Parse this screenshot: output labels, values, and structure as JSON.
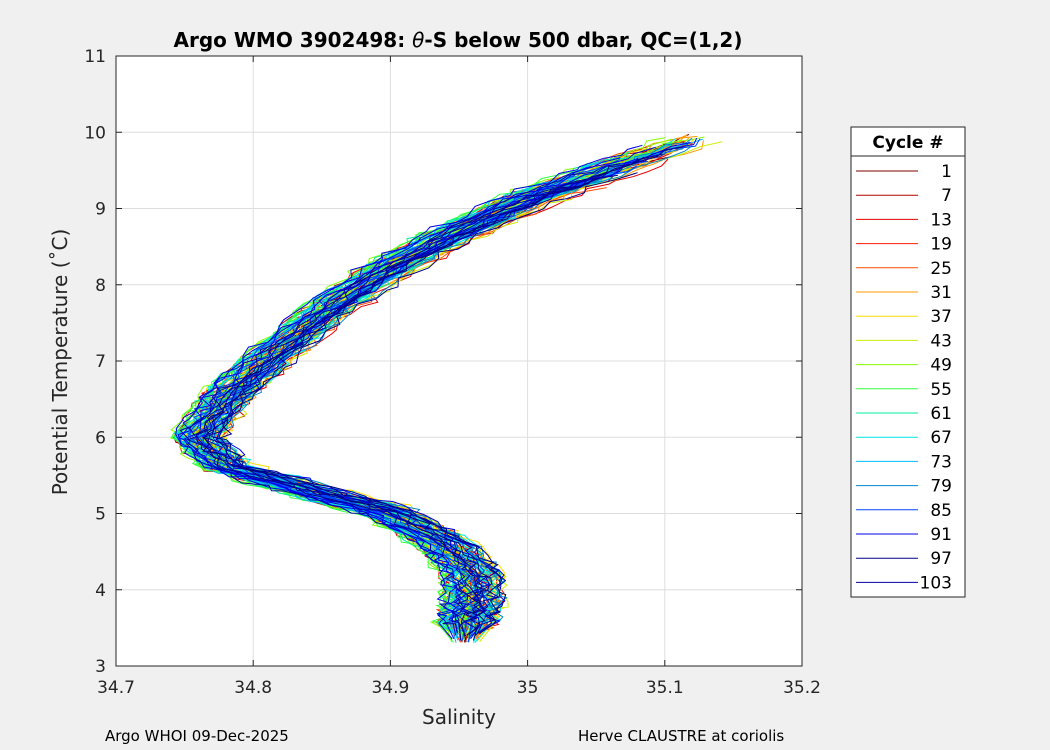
{
  "chart_data": {
    "type": "line",
    "title_prefix": "Argo WMO 3902498: ",
    "title_symbol": "θ",
    "title_suffix": "-S below 500 dbar,  QC=(1,2)",
    "xlabel": "Salinity",
    "ylabel": "Potential Temperature (˚C)",
    "xlim": [
      34.7,
      35.2
    ],
    "ylim": [
      3,
      11
    ],
    "xticks": [
      "34.7",
      "34.8",
      "34.9",
      "35",
      "35.1",
      "35.2"
    ],
    "yticks": [
      "3",
      "4",
      "5",
      "6",
      "7",
      "8",
      "9",
      "10",
      "11"
    ],
    "grid": true,
    "legend": {
      "title": "Cycle #",
      "placement": "right",
      "entries": [
        {
          "label": "1",
          "color": "#800000"
        },
        {
          "label": "7",
          "color": "#b30000"
        },
        {
          "label": "13",
          "color": "#e60000"
        },
        {
          "label": "19",
          "color": "#ff1a00"
        },
        {
          "label": "25",
          "color": "#ff4d00"
        },
        {
          "label": "31",
          "color": "#ff9900"
        },
        {
          "label": "37",
          "color": "#ffdd00"
        },
        {
          "label": "43",
          "color": "#ccee00"
        },
        {
          "label": "49",
          "color": "#88ff00"
        },
        {
          "label": "55",
          "color": "#33ff44"
        },
        {
          "label": "61",
          "color": "#00ee99"
        },
        {
          "label": "67",
          "color": "#00e6e6"
        },
        {
          "label": "73",
          "color": "#00bbff"
        },
        {
          "label": "79",
          "color": "#0088cc"
        },
        {
          "label": "85",
          "color": "#0044ff"
        },
        {
          "label": "91",
          "color": "#0000ee"
        },
        {
          "label": "97",
          "color": "#000088"
        },
        {
          "label": "103",
          "color": "#0000aa"
        }
      ]
    },
    "series_shape": {
      "description": "theta-S profile per cycle, approximate envelope",
      "points": [
        {
          "s": 35.12,
          "t": 9.9
        },
        {
          "s": 35.06,
          "t": 9.5
        },
        {
          "s": 35.0,
          "t": 9.1
        },
        {
          "s": 34.94,
          "t": 8.6
        },
        {
          "s": 34.89,
          "t": 8.1
        },
        {
          "s": 34.85,
          "t": 7.6
        },
        {
          "s": 34.81,
          "t": 7.0
        },
        {
          "s": 34.78,
          "t": 6.5
        },
        {
          "s": 34.76,
          "t": 6.0
        },
        {
          "s": 34.78,
          "t": 5.6
        },
        {
          "s": 34.84,
          "t": 5.3
        },
        {
          "s": 34.9,
          "t": 5.0
        },
        {
          "s": 34.94,
          "t": 4.6
        },
        {
          "s": 34.96,
          "t": 4.2
        },
        {
          "s": 34.96,
          "t": 3.8
        },
        {
          "s": 34.955,
          "t": 3.5
        }
      ]
    }
  },
  "footer": {
    "left": "Argo WHOI 09-Dec-2025",
    "right": "Herve CLAUSTRE at coriolis"
  }
}
